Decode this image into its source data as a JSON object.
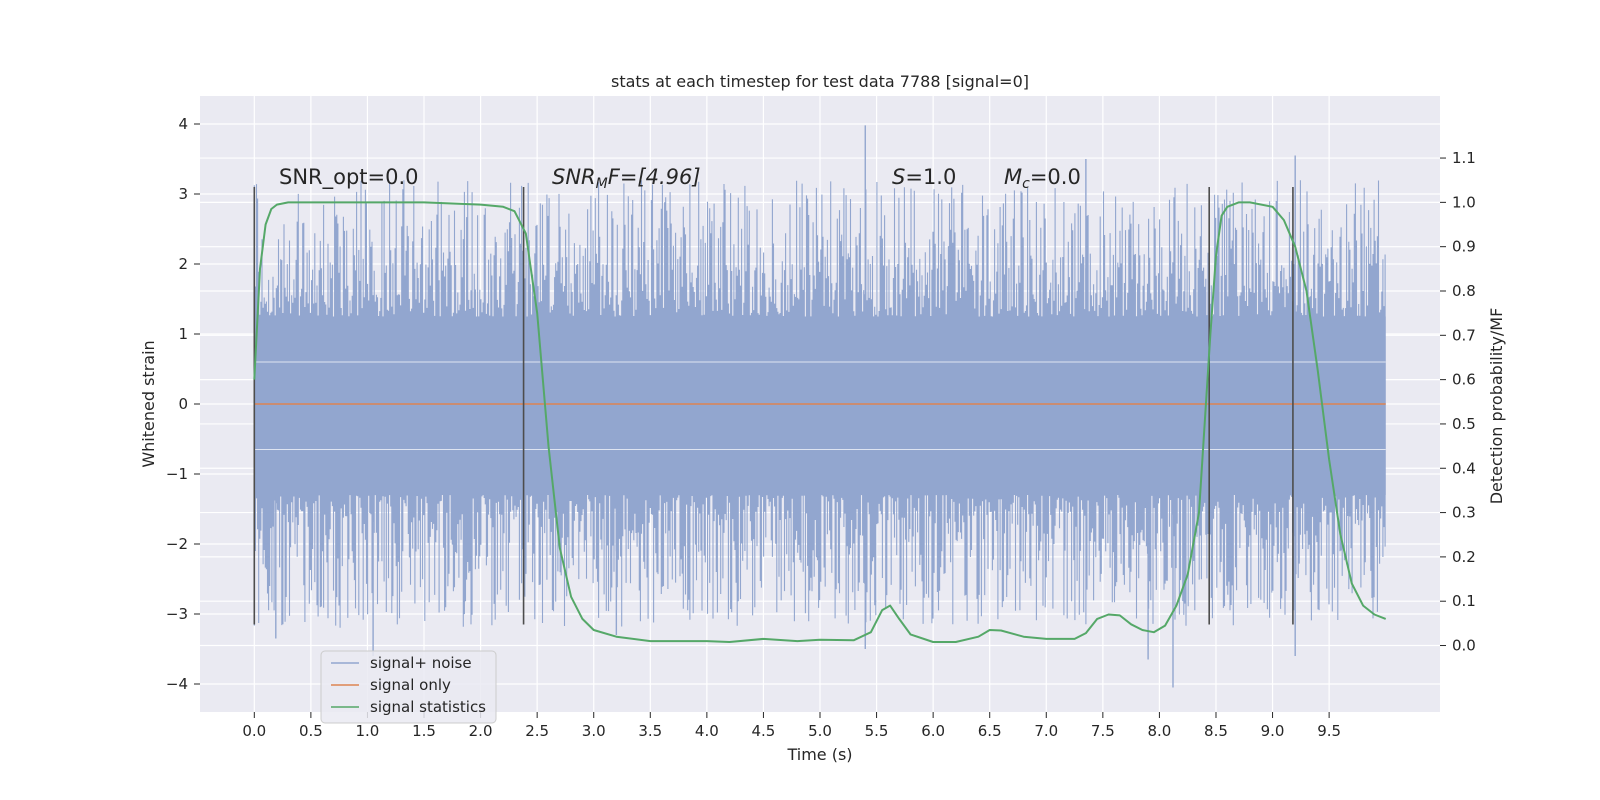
{
  "chart_data": {
    "type": "line",
    "title": "stats at each timestep for test data 7788 [signal=0]",
    "xlabel": "Time (s)",
    "ylabel": "Whitened strain",
    "y2label": "Detection probability/MF",
    "xlim": [
      -0.48,
      10.48
    ],
    "ylim": [
      -4.4,
      4.4
    ],
    "y2lim": [
      -0.15,
      1.24
    ],
    "xticks": [
      "0.0",
      "0.5",
      "1.0",
      "1.5",
      "2.0",
      "2.5",
      "3.0",
      "3.5",
      "4.0",
      "4.5",
      "5.0",
      "5.5",
      "6.0",
      "6.5",
      "7.0",
      "7.5",
      "8.0",
      "8.5",
      "9.0",
      "9.5"
    ],
    "yticks": [
      "4",
      "3",
      "2",
      "1",
      "0",
      "−1",
      "−2",
      "−3",
      "−4"
    ],
    "y2ticks": [
      "1.1",
      "1.0",
      "0.9",
      "0.8",
      "0.7",
      "0.6",
      "0.5",
      "0.4",
      "0.3",
      "0.2",
      "0.1",
      "0.0"
    ],
    "grid": true,
    "legend_position": "lower-left",
    "annotations": {
      "snr_opt": "SNR_opt=0.0",
      "snr_mf_base": "SNR",
      "snr_mf_sub": "M",
      "snr_mf_rest": "F=[4.96]",
      "s_var": "S",
      "s_rest": "=1.0",
      "mc_var": "M",
      "mc_sub": "c",
      "mc_rest": "=0.0"
    },
    "vlines_x": [
      0.0,
      2.38,
      8.44,
      9.18
    ],
    "vlines_ylim": [
      -3.15,
      3.1
    ],
    "noise_envelope": {
      "x_start": 0.0,
      "x_end": 10.0,
      "core_min": -1.3,
      "core_max": 1.25,
      "typical_peak_max": 3.2,
      "typical_peak_min": -3.2,
      "notable_peaks": [
        {
          "x": 0.19,
          "y": -3.35
        },
        {
          "x": 1.05,
          "y": -3.6
        },
        {
          "x": 5.4,
          "y": 3.98
        },
        {
          "x": 5.4,
          "y": -3.5
        },
        {
          "x": 8.12,
          "y": -4.05
        },
        {
          "x": 7.9,
          "y": -3.65
        },
        {
          "x": 9.2,
          "y": 3.55
        },
        {
          "x": 9.2,
          "y": -3.6
        },
        {
          "x": 7.35,
          "y": 3.5
        },
        {
          "x": 3.2,
          "y": -3.3
        }
      ]
    },
    "series": [
      {
        "name": "signal+ noise",
        "color": "#92a6cf"
      },
      {
        "name": "signal only",
        "color": "#dd8452",
        "y": 0.0
      },
      {
        "name": "signal statistics",
        "color": "#55a868",
        "axis": "right",
        "x": [
          0.0,
          0.05,
          0.1,
          0.15,
          0.2,
          0.3,
          0.5,
          1.0,
          1.5,
          2.0,
          2.2,
          2.3,
          2.4,
          2.5,
          2.6,
          2.7,
          2.8,
          2.9,
          3.0,
          3.2,
          3.5,
          4.0,
          4.2,
          4.5,
          4.8,
          5.0,
          5.3,
          5.45,
          5.55,
          5.62,
          5.7,
          5.8,
          6.0,
          6.2,
          6.4,
          6.5,
          6.6,
          6.8,
          7.0,
          7.25,
          7.35,
          7.45,
          7.55,
          7.65,
          7.75,
          7.85,
          7.95,
          8.05,
          8.15,
          8.25,
          8.35,
          8.45,
          8.5,
          8.55,
          8.6,
          8.7,
          8.8,
          9.0,
          9.1,
          9.2,
          9.3,
          9.4,
          9.5,
          9.6,
          9.7,
          9.8,
          9.9,
          10.0
        ],
        "y": [
          0.6,
          0.85,
          0.95,
          0.985,
          0.995,
          1.0,
          1.0,
          1.0,
          1.0,
          0.995,
          0.99,
          0.98,
          0.93,
          0.75,
          0.45,
          0.22,
          0.11,
          0.06,
          0.035,
          0.02,
          0.01,
          0.01,
          0.008,
          0.015,
          0.01,
          0.013,
          0.012,
          0.03,
          0.08,
          0.09,
          0.06,
          0.025,
          0.008,
          0.008,
          0.02,
          0.035,
          0.034,
          0.02,
          0.015,
          0.015,
          0.028,
          0.06,
          0.07,
          0.068,
          0.048,
          0.035,
          0.03,
          0.045,
          0.09,
          0.16,
          0.3,
          0.7,
          0.88,
          0.97,
          0.99,
          1.0,
          1.0,
          0.99,
          0.96,
          0.9,
          0.8,
          0.62,
          0.42,
          0.25,
          0.14,
          0.09,
          0.07,
          0.06
        ]
      }
    ]
  }
}
